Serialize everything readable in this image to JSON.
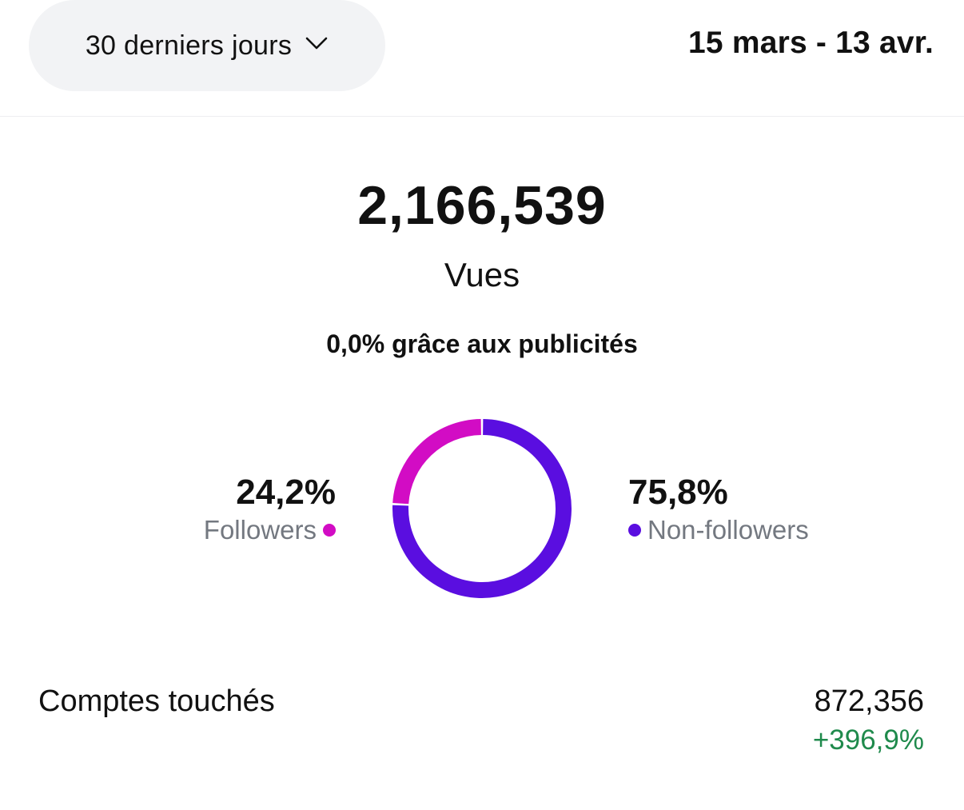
{
  "header": {
    "period_label": "30 derniers jours",
    "date_range": "15 mars - 13 avr."
  },
  "summary": {
    "views_value": "2,166,539",
    "views_label": "Vues",
    "ads_note": "0,0% grâce aux publicités"
  },
  "chart_data": {
    "type": "pie",
    "categories": [
      "Followers",
      "Non-followers"
    ],
    "values": [
      24.2,
      75.8
    ],
    "colors": [
      "#d20cc4",
      "#5a0ee0"
    ]
  },
  "breakdown": {
    "followers_pct": "24,2%",
    "followers_label": "Followers",
    "non_followers_pct": "75,8%",
    "non_followers_label": "Non-followers"
  },
  "reach": {
    "label": "Comptes touchés",
    "value": "872,356",
    "change": "+396,9%"
  },
  "colors": {
    "followers": "#d20cc4",
    "non_followers": "#5a0ee0",
    "positive_change": "#1f8a4c"
  }
}
